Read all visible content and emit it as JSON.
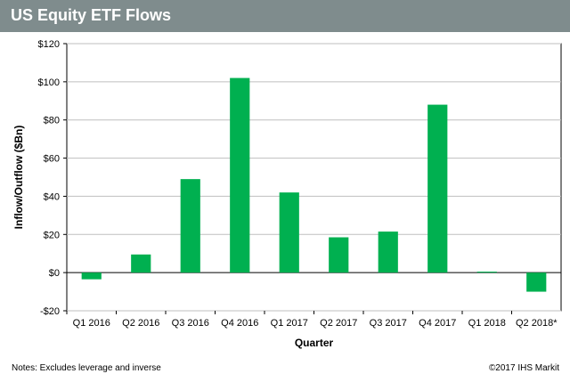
{
  "header": {
    "title": "US Equity ETF Flows"
  },
  "footer": {
    "note": "Notes: Excludes leverage and inverse",
    "copyright": "©2017 IHS Markit"
  },
  "colors": {
    "bar": "#00b050",
    "title_bg": "#7f8c8d",
    "grid": "#bfbfbf"
  },
  "chart_data": {
    "type": "bar",
    "title": "US Equity ETF Flows",
    "xlabel": "Quarter",
    "ylabel": "Inflow/Outflow ($Bn)",
    "categories": [
      "Q1 2016",
      "Q2 2016",
      "Q3 2016",
      "Q4 2016",
      "Q1 2017",
      "Q2 2017",
      "Q3 2017",
      "Q4 2017",
      "Q1 2018",
      "Q2 2018*"
    ],
    "values": [
      -3.5,
      9.5,
      49,
      102,
      42,
      18.5,
      21.5,
      88,
      0.5,
      -10
    ],
    "ylim": [
      -20,
      120
    ],
    "yticks": [
      -20,
      0,
      20,
      40,
      60,
      80,
      100,
      120
    ],
    "ytick_labels": [
      "-$20",
      "$0",
      "$20",
      "$40",
      "$60",
      "$80",
      "$100",
      "$120"
    ],
    "grid": true,
    "legend": "none"
  }
}
